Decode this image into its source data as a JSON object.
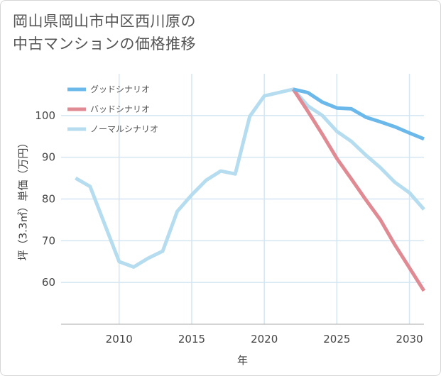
{
  "title": {
    "line1": "岡山県岡山市中区西川原の",
    "line2": "中古マンションの価格推移"
  },
  "chart_data": {
    "type": "line",
    "title": "岡山県岡山市中区西川原の中古マンションの価格推移",
    "xlabel": "年",
    "ylabel": "坪（3.3㎡）単価（万円）",
    "xlim": [
      2006,
      2031
    ],
    "ylim": [
      50,
      110
    ],
    "x_ticks": [
      2010,
      2015,
      2020,
      2025,
      2030
    ],
    "y_ticks": [
      60,
      70,
      80,
      90,
      100
    ],
    "grid": true,
    "legend_position": "top-left",
    "series": [
      {
        "name": "グッドシナリオ",
        "color": "#6bb8eb",
        "x": [
          2022,
          2023,
          2024,
          2025,
          2026,
          2027,
          2028,
          2029,
          2030,
          2031
        ],
        "y": [
          106.3,
          105.5,
          103.2,
          101.8,
          101.6,
          99.6,
          98.5,
          97.3,
          95.8,
          94.4
        ]
      },
      {
        "name": "バッドシナリオ",
        "color": "#e08a93",
        "x": [
          2022,
          2023,
          2024,
          2025,
          2026,
          2027,
          2028,
          2029,
          2030,
          2031
        ],
        "y": [
          106.3,
          101.0,
          95.5,
          89.7,
          84.8,
          79.8,
          75.0,
          69.0,
          63.5,
          58.0
        ]
      },
      {
        "name": "ノーマルシナリオ",
        "color": "#b5dcef",
        "x": [
          2007,
          2008,
          2009,
          2010,
          2011,
          2012,
          2013,
          2014,
          2015,
          2016,
          2017,
          2018,
          2019,
          2020,
          2021,
          2022,
          2023,
          2024,
          2025,
          2026,
          2027,
          2028,
          2029,
          2030,
          2031
        ],
        "y": [
          85.0,
          83.0,
          74.0,
          65.0,
          63.7,
          65.8,
          67.5,
          77.0,
          81.0,
          84.5,
          86.7,
          86.0,
          99.8,
          104.7,
          105.5,
          106.3,
          102.3,
          100.0,
          96.2,
          93.8,
          90.5,
          87.5,
          84.0,
          81.5,
          77.5
        ]
      }
    ]
  }
}
